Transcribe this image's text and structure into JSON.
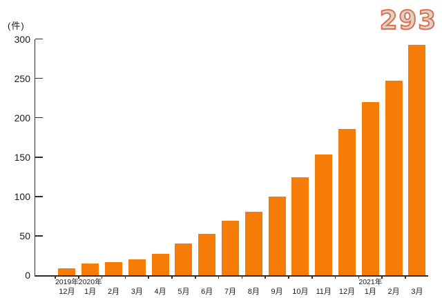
{
  "chart_data": {
    "type": "bar",
    "title": "",
    "unit_label": "(件)",
    "categories": [
      "12月",
      "1月",
      "2月",
      "3月",
      "4月",
      "5月",
      "6月",
      "7月",
      "8月",
      "9月",
      "10月",
      "11月",
      "12月",
      "1月",
      "2月",
      "3月"
    ],
    "year_labels": [
      {
        "index": 0,
        "label": "2019年"
      },
      {
        "index": 1,
        "label": "2020年"
      },
      {
        "index": 13,
        "label": "2021年"
      }
    ],
    "values": [
      9,
      15,
      17,
      20,
      27,
      40,
      53,
      69,
      81,
      100,
      124,
      153,
      186,
      220,
      247,
      293
    ],
    "y_ticks": [
      0,
      50,
      100,
      150,
      200,
      250,
      300
    ],
    "ylim": [
      0,
      300
    ],
    "grid": false,
    "legend": "none",
    "bar_color": "#f57d07",
    "axis_color": "#2e2e2e",
    "callout": {
      "text": "293",
      "fill_color": "#dad2cd",
      "stroke_color": "#df6e4a"
    }
  }
}
